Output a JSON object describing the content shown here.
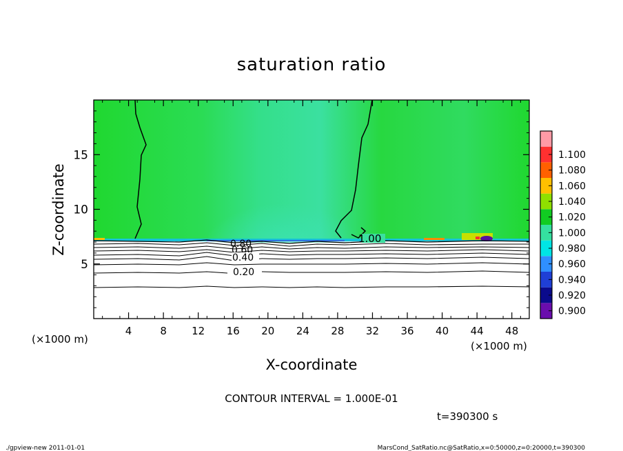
{
  "chart_data": {
    "type": "heatmap",
    "title": "saturation ratio",
    "xlabel": "X-coordinate",
    "ylabel": "Z-coordinate",
    "x_unit_left": "(×1000 m)",
    "x_unit_right": "(×1000 m)",
    "xlim": [
      0,
      50
    ],
    "ylim": [
      0,
      20
    ],
    "xticks": [
      4,
      8,
      12,
      16,
      20,
      24,
      28,
      32,
      36,
      40,
      44,
      48
    ],
    "yticks": [
      5,
      10,
      15
    ],
    "colorbar": {
      "levels": [
        0.9,
        0.92,
        0.94,
        0.96,
        0.98,
        1.0,
        1.02,
        1.04,
        1.06,
        1.08,
        1.1
      ],
      "labels": [
        "0.900",
        "0.920",
        "0.940",
        "0.960",
        "0.980",
        "1.000",
        "1.020",
        "1.040",
        "1.060",
        "1.080",
        "1.100"
      ],
      "colors": [
        "#6a0dad",
        "#0a0a8c",
        "#1f3fd6",
        "#2f8fff",
        "#00e5e5",
        "#35e0a0",
        "#11cc22",
        "#8fe000",
        "#ffc000",
        "#ff6000",
        "#ff3030",
        "#ff9aa6"
      ]
    },
    "contour_labels": [
      "1.00",
      "0.80",
      "0.60",
      "0.40",
      "0.20"
    ],
    "contour_interval_text": "CONTOUR INTERVAL = 1.000E-01",
    "time_text": "t=390300 s"
  },
  "footer": {
    "left": "./gpview-new   2011-01-01",
    "right": "MarsCond_SatRatio.nc@SatRatio,x=0:50000,z=0:20000,t=390300"
  }
}
